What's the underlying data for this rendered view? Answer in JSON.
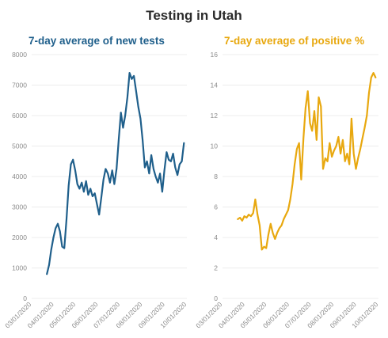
{
  "page": {
    "title": "Testing in Utah"
  },
  "colors": {
    "left": "#1f5f8b",
    "right": "#e8a80f"
  },
  "chart_data": [
    {
      "type": "line",
      "title": "7-day average of new tests",
      "ylim": [
        0,
        8000
      ],
      "yticks": [
        "0",
        "1000",
        "2000",
        "3000",
        "4000",
        "5000",
        "6000",
        "7000",
        "8000"
      ],
      "xticks": [
        "03/01/2020",
        "04/01/2020",
        "05/01/2020",
        "06/01/2020",
        "07/01/2020",
        "08/01/2020",
        "09/01/2020",
        "10/01/2020"
      ],
      "series": [
        {
          "x": [
            "2020-03-22",
            "2020-03-25",
            "2020-03-28",
            "2020-03-31",
            "2020-04-03",
            "2020-04-06",
            "2020-04-09",
            "2020-04-12",
            "2020-04-15",
            "2020-04-18",
            "2020-04-21",
            "2020-04-24",
            "2020-04-27",
            "2020-04-30",
            "2020-05-03",
            "2020-05-06",
            "2020-05-09",
            "2020-05-12",
            "2020-05-15",
            "2020-05-18",
            "2020-05-21",
            "2020-05-24",
            "2020-05-27",
            "2020-05-30",
            "2020-06-02",
            "2020-06-05",
            "2020-06-08",
            "2020-06-11",
            "2020-06-14",
            "2020-06-17",
            "2020-06-20",
            "2020-06-23",
            "2020-06-26",
            "2020-06-29",
            "2020-07-02",
            "2020-07-05",
            "2020-07-08",
            "2020-07-11",
            "2020-07-14",
            "2020-07-17",
            "2020-07-20",
            "2020-07-23",
            "2020-07-26",
            "2020-07-29",
            "2020-08-01",
            "2020-08-04",
            "2020-08-07",
            "2020-08-10",
            "2020-08-13",
            "2020-08-16",
            "2020-08-19",
            "2020-08-22",
            "2020-08-25",
            "2020-08-28",
            "2020-08-31",
            "2020-09-03",
            "2020-09-06",
            "2020-09-09",
            "2020-09-12",
            "2020-09-15",
            "2020-09-18",
            "2020-09-21",
            "2020-09-24",
            "2020-09-27"
          ],
          "values": [
            800,
            1100,
            1600,
            2000,
            2300,
            2450,
            2200,
            1700,
            1650,
            2600,
            3700,
            4400,
            4550,
            4200,
            3750,
            3600,
            3800,
            3500,
            3850,
            3400,
            3600,
            3350,
            3450,
            3100,
            2750,
            3300,
            3900,
            4250,
            4100,
            3800,
            4200,
            3750,
            4250,
            5200,
            6100,
            5600,
            6000,
            6600,
            7400,
            7200,
            7300,
            6800,
            6300,
            5900,
            5200,
            4300,
            4500,
            4100,
            4700,
            4250,
            4000,
            3800,
            4100,
            3500,
            4200,
            4800,
            4550,
            4500,
            4750,
            4300,
            4050,
            4400,
            4500,
            5100
          ]
        }
      ]
    },
    {
      "type": "line",
      "title": "7-day average of positive %",
      "ylim": [
        0,
        16
      ],
      "yticks": [
        "0",
        "2",
        "4",
        "6",
        "8",
        "10",
        "12",
        "14",
        "16"
      ],
      "xticks": [
        "03/01/2020",
        "04/01/2020",
        "05/01/2020",
        "06/01/2020",
        "07/01/2020",
        "08/01/2020",
        "09/01/2020",
        "10/01/2020"
      ],
      "series": [
        {
          "x": [
            "2020-03-22",
            "2020-03-25",
            "2020-03-28",
            "2020-03-31",
            "2020-04-03",
            "2020-04-06",
            "2020-04-09",
            "2020-04-12",
            "2020-04-15",
            "2020-04-18",
            "2020-04-21",
            "2020-04-24",
            "2020-04-27",
            "2020-04-30",
            "2020-05-03",
            "2020-05-06",
            "2020-05-09",
            "2020-05-12",
            "2020-05-15",
            "2020-05-18",
            "2020-05-21",
            "2020-05-24",
            "2020-05-27",
            "2020-05-30",
            "2020-06-02",
            "2020-06-05",
            "2020-06-08",
            "2020-06-11",
            "2020-06-14",
            "2020-06-17",
            "2020-06-20",
            "2020-06-23",
            "2020-06-26",
            "2020-06-29",
            "2020-07-02",
            "2020-07-05",
            "2020-07-08",
            "2020-07-11",
            "2020-07-14",
            "2020-07-17",
            "2020-07-20",
            "2020-07-23",
            "2020-07-26",
            "2020-07-29",
            "2020-08-01",
            "2020-08-04",
            "2020-08-07",
            "2020-08-10",
            "2020-08-13",
            "2020-08-16",
            "2020-08-19",
            "2020-08-22",
            "2020-08-25",
            "2020-08-28",
            "2020-08-31",
            "2020-09-03",
            "2020-09-06",
            "2020-09-09",
            "2020-09-12",
            "2020-09-15",
            "2020-09-18",
            "2020-09-21",
            "2020-09-24",
            "2020-09-27"
          ],
          "values": [
            5.2,
            5.3,
            5.1,
            5.4,
            5.3,
            5.5,
            5.4,
            5.6,
            6.5,
            5.5,
            4.8,
            3.2,
            3.4,
            3.3,
            4.2,
            4.9,
            4.3,
            3.9,
            4.3,
            4.6,
            4.8,
            5.2,
            5.5,
            5.8,
            6.5,
            7.5,
            8.8,
            9.8,
            10.2,
            7.8,
            10.5,
            12.5,
            13.6,
            11.5,
            11.0,
            12.3,
            10.4,
            13.2,
            12.6,
            8.5,
            9.2,
            9.0,
            10.2,
            9.3,
            9.7,
            10.0,
            10.6,
            9.5,
            10.4,
            9.0,
            9.5,
            8.8,
            11.8,
            9.5,
            8.5,
            9.2,
            9.8,
            10.5,
            11.2,
            12.0,
            13.5,
            14.5,
            14.8,
            14.5
          ]
        }
      ]
    }
  ]
}
